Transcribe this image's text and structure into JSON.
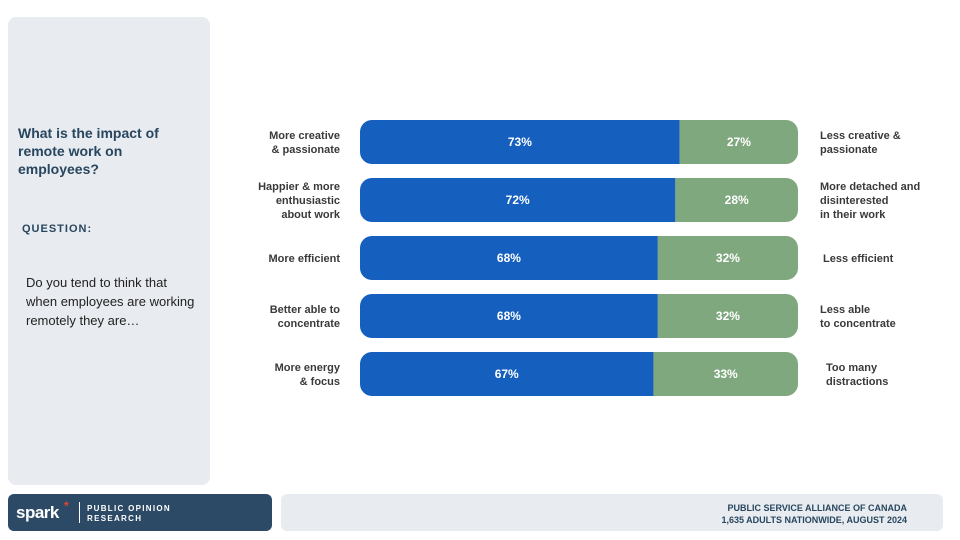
{
  "panel": {
    "title": "What is the impact of remote work on employees?",
    "question_label": "QUESTION:",
    "question_text": "Do you tend to think that when employees are working remotely they are…"
  },
  "chart_data": {
    "type": "bar",
    "orientation": "horizontal",
    "stacked": true,
    "normalized_to_100": true,
    "categories": [
      {
        "left": [
          "More creative",
          "& passionate"
        ],
        "right": [
          "Less creative &",
          " passionate"
        ]
      },
      {
        "left": [
          "Happier & more",
          "enthusiastic",
          "about work"
        ],
        "right": [
          "More detached and",
          "disinterested",
          "in their work"
        ]
      },
      {
        "left": [
          "More efficient"
        ],
        "right": [
          "Less efficient"
        ]
      },
      {
        "left": [
          "Better able to",
          "concentrate"
        ],
        "right": [
          "Less able",
          "to concentrate"
        ]
      },
      {
        "left": [
          "More energy",
          "& focus"
        ],
        "right": [
          "Too many",
          "distractions"
        ]
      }
    ],
    "series": [
      {
        "values": [
          73,
          72,
          68,
          68,
          67
        ],
        "labels": [
          "73%",
          "72%",
          "68%",
          "68%",
          "67%"
        ],
        "color": "#155fbf"
      },
      {
        "values": [
          27,
          28,
          32,
          32,
          33
        ],
        "labels": [
          "27%",
          "28%",
          "32%",
          "32%",
          "33%"
        ],
        "color": "#80a87f"
      }
    ],
    "xlim": [
      0,
      100
    ],
    "grid": false,
    "legend": "none"
  },
  "footer": {
    "logo_text": "spark",
    "logo_mark": "*",
    "logo_sub_1": "PUBLIC OPINION",
    "logo_sub_2": "RESEARCH",
    "source_line_1": "PUBLIC SERVICE ALLIANCE OF CANADA",
    "source_line_2": "1,635 ADULTS NATIONWIDE, AUGUST 2024"
  }
}
